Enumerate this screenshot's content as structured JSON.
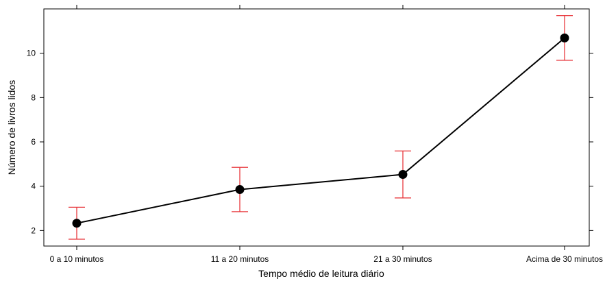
{
  "chart_data": {
    "type": "line",
    "title": "",
    "xlabel": "Tempo médio de leitura diário",
    "ylabel": "Número de livros lidos",
    "categories": [
      "0 a 10 minutos",
      "11 a 20 minutos",
      "21 a 30 minutos",
      "Acima de 30 minutos"
    ],
    "series": [
      {
        "values": [
          2.33,
          3.85,
          4.53,
          10.69
        ],
        "error_low": [
          1.61,
          2.85,
          3.47,
          9.68
        ],
        "error_high": [
          3.05,
          4.85,
          5.59,
          11.7
        ]
      }
    ],
    "yticks": [
      2,
      4,
      6,
      8,
      10
    ],
    "ylim": [
      1.3,
      12.0
    ],
    "grid": false,
    "legend": "none",
    "colors": {
      "line": "#000000",
      "marker": "#000000",
      "error_bar": "#e8383d",
      "axis": "#000000"
    }
  }
}
